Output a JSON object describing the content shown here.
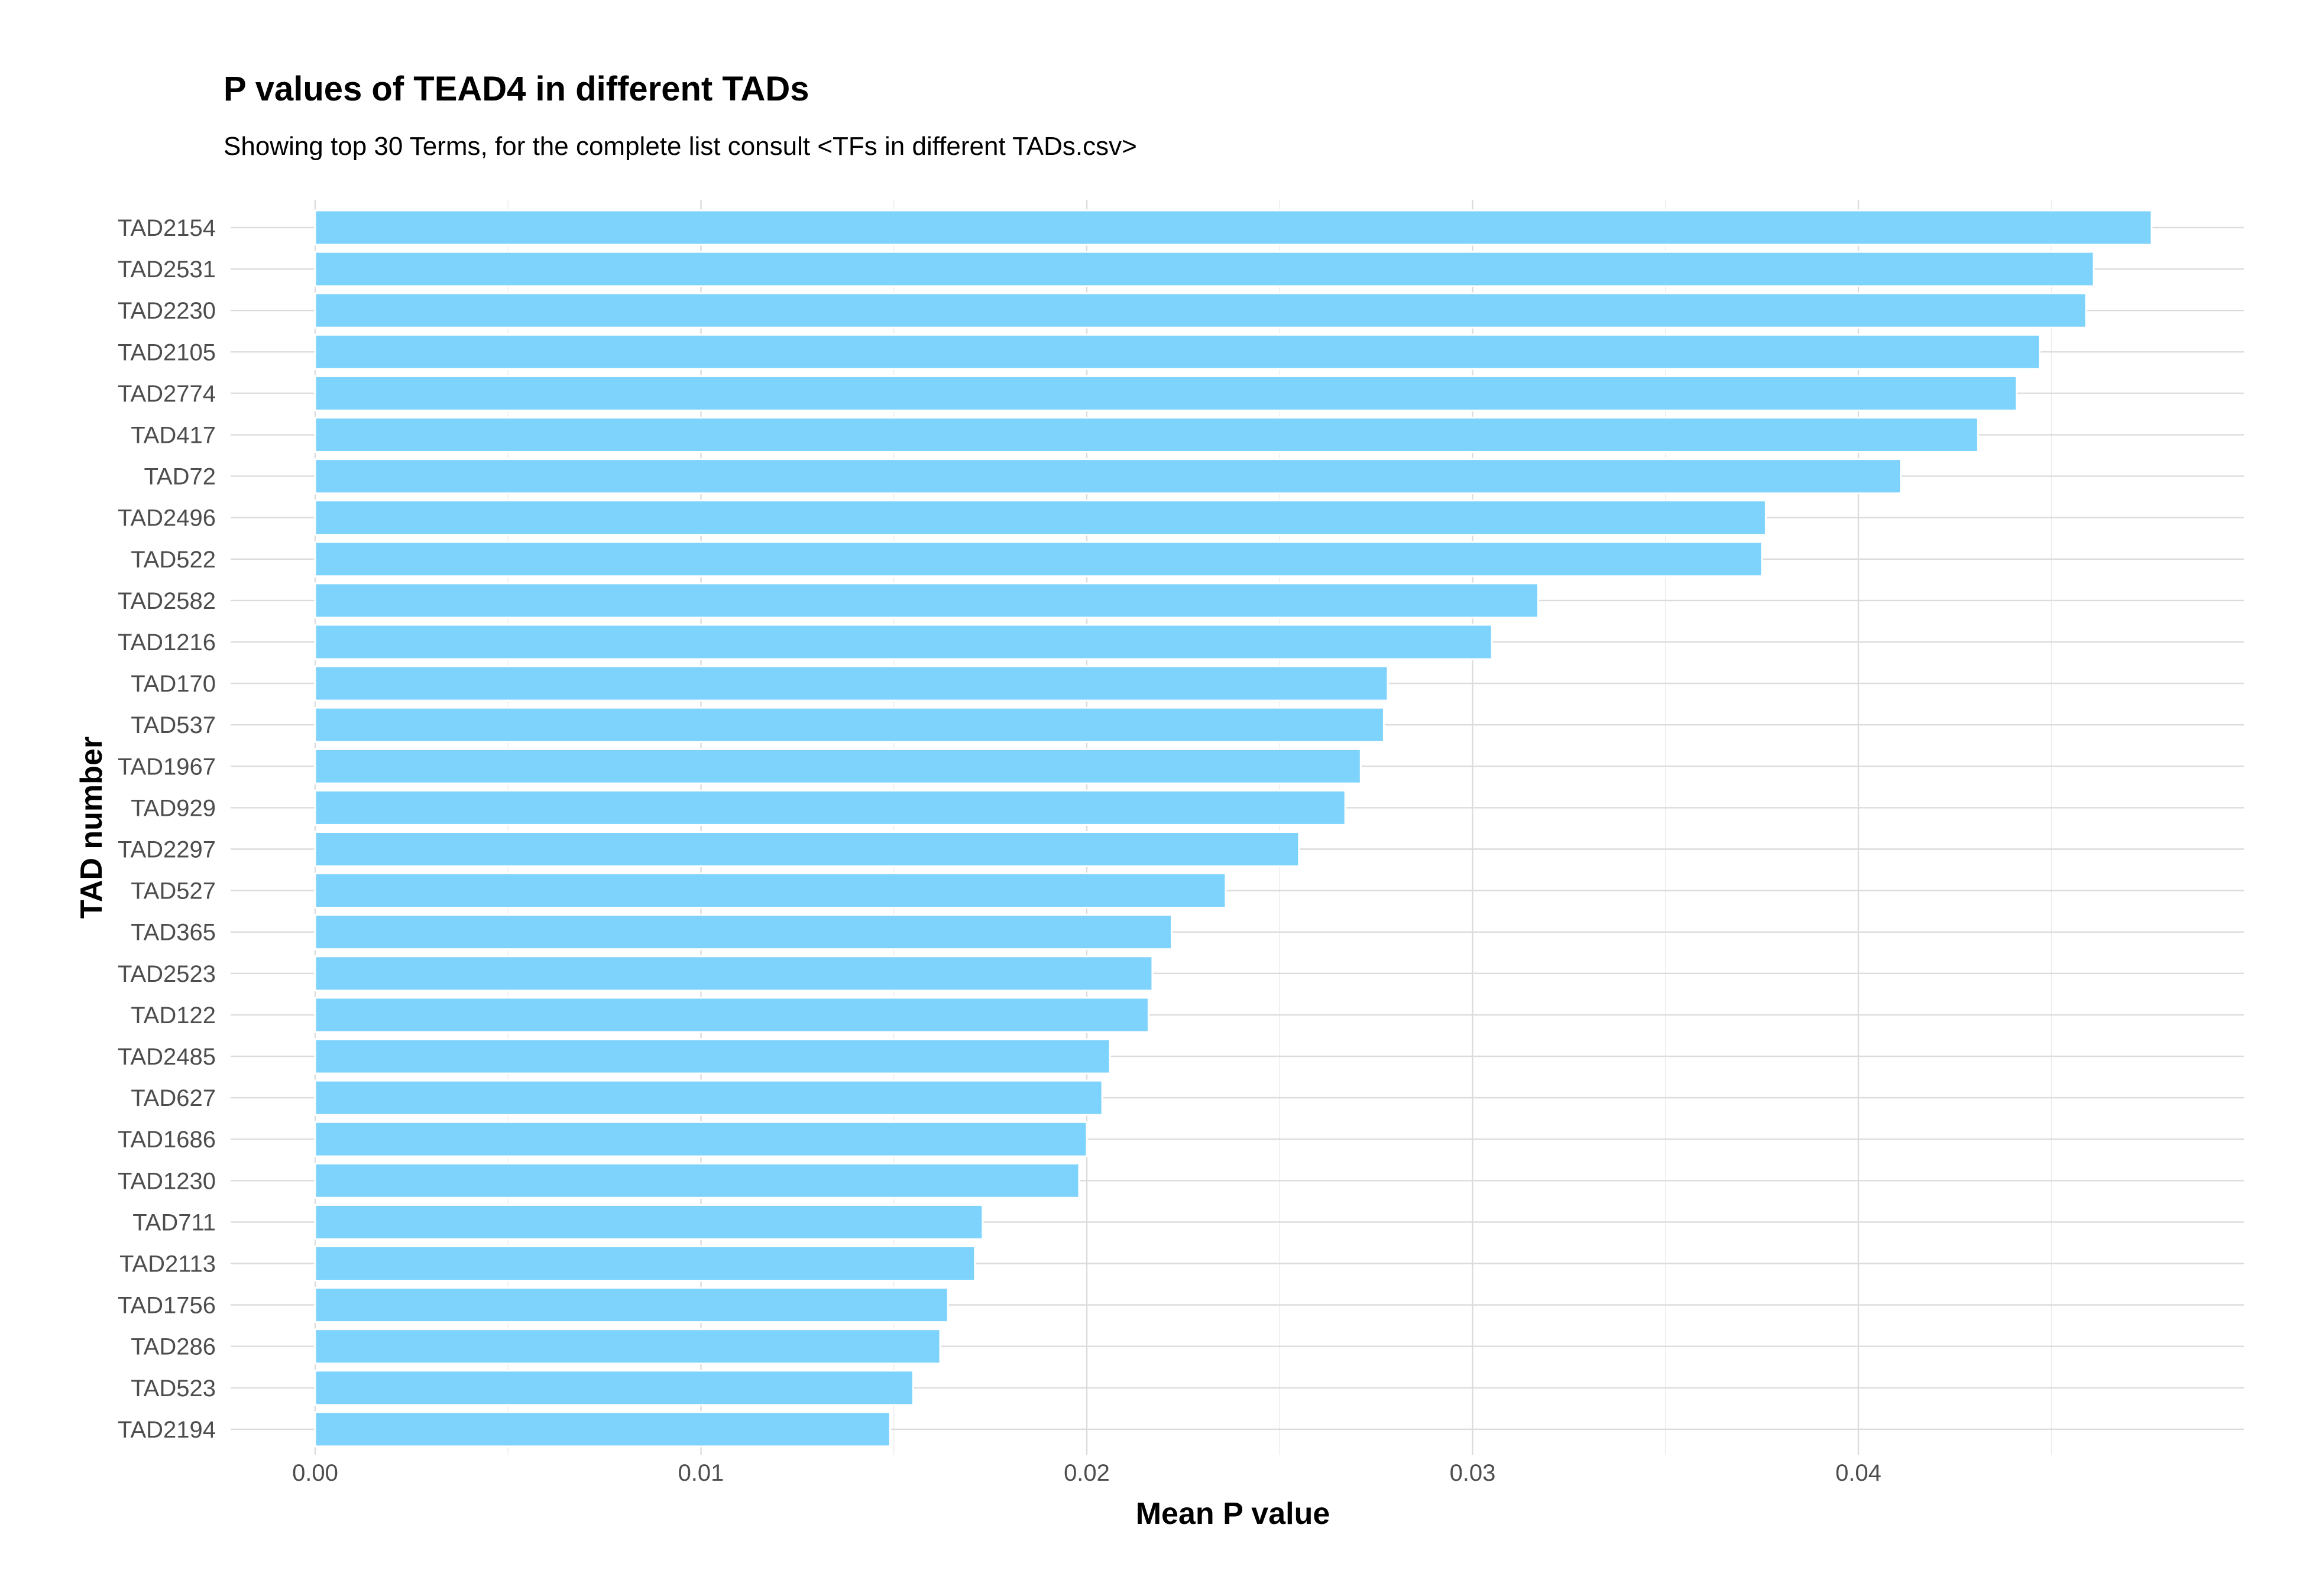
{
  "chart_data": {
    "type": "bar",
    "orientation": "horizontal",
    "title": "P values of TEAD4 in different TADs",
    "subtitle": "Showing top 30 Terms, for the complete list consult <TFs in different TADs.csv>",
    "xlabel": "Mean P value",
    "ylabel": "TAD number",
    "xlim": [
      0,
      0.05
    ],
    "x_ticks": [
      0.0,
      0.01,
      0.02,
      0.03,
      0.04
    ],
    "x_tick_labels": [
      "0.00",
      "0.01",
      "0.02",
      "0.03",
      "0.04"
    ],
    "grid": true,
    "bar_color": "#7dd3fc",
    "bar_outline": "#ffffff",
    "categories": [
      "TAD2154",
      "TAD2531",
      "TAD2230",
      "TAD2105",
      "TAD2774",
      "TAD417",
      "TAD72",
      "TAD2496",
      "TAD522",
      "TAD2582",
      "TAD1216",
      "TAD170",
      "TAD537",
      "TAD1967",
      "TAD929",
      "TAD2297",
      "TAD527",
      "TAD365",
      "TAD2523",
      "TAD122",
      "TAD2485",
      "TAD627",
      "TAD1686",
      "TAD1230",
      "TAD711",
      "TAD2113",
      "TAD1756",
      "TAD286",
      "TAD523",
      "TAD2194"
    ],
    "values": [
      0.0476,
      0.0461,
      0.0459,
      0.0447,
      0.0441,
      0.0431,
      0.0411,
      0.0376,
      0.0375,
      0.0317,
      0.0305,
      0.0278,
      0.0277,
      0.0271,
      0.0267,
      0.0255,
      0.0236,
      0.0222,
      0.0217,
      0.0216,
      0.0206,
      0.0204,
      0.02,
      0.0198,
      0.0173,
      0.0171,
      0.0164,
      0.0162,
      0.0155,
      0.0149
    ]
  }
}
